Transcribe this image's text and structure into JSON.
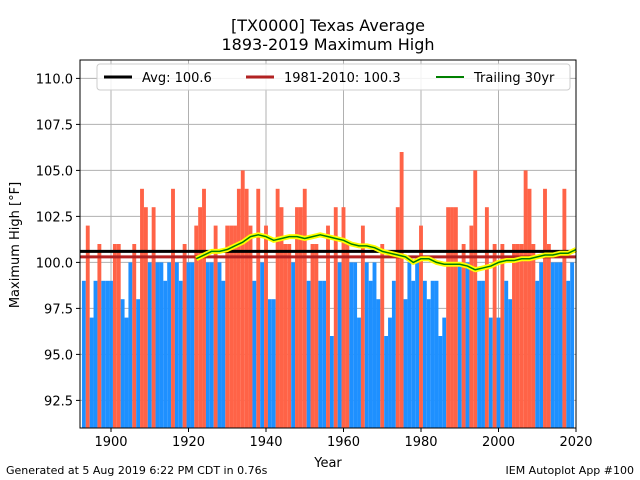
{
  "chart_data": {
    "type": "bar",
    "title": "[TX0000] Texas Average",
    "subtitle": "1893-2019 Maximum High",
    "xlabel": "Year",
    "ylabel": "Maximum High [°F]",
    "xlim": [
      1892,
      2020
    ],
    "ylim": [
      91.0,
      111.0
    ],
    "xticks": [
      1900,
      1920,
      1940,
      1960,
      1980,
      2000,
      2020
    ],
    "yticks": [
      92.5,
      95.0,
      97.5,
      100.0,
      102.5,
      105.0,
      107.5,
      110.0
    ],
    "grid": true,
    "legend_position": "top",
    "colors": {
      "above": "#ff6347",
      "below": "#1e90ff",
      "avg": "#000000",
      "climo": "#b22222",
      "trailing": "#008000",
      "trailing_halo": "#ffff00"
    },
    "start_year": 1893,
    "values": [
      99,
      102,
      97,
      99,
      101,
      99,
      99,
      99,
      101,
      101,
      98,
      97,
      100,
      101,
      98,
      104,
      103,
      100,
      103,
      100,
      100,
      99,
      100,
      104,
      100,
      99,
      101,
      100,
      100,
      102,
      103,
      104,
      100,
      100,
      102,
      100,
      99,
      102,
      102,
      102,
      104,
      105,
      104,
      102,
      99,
      104,
      100,
      102,
      98,
      98,
      104,
      103,
      101,
      101,
      100,
      103,
      103,
      104,
      99,
      101,
      101,
      99,
      99,
      102,
      96,
      103,
      100,
      103,
      101,
      100,
      100,
      97,
      102,
      100,
      99,
      100,
      98,
      101,
      96,
      97,
      99,
      103,
      106,
      98,
      100,
      99,
      100,
      102,
      99,
      98,
      99,
      99,
      96,
      97,
      103,
      103,
      103,
      100,
      101,
      100,
      102,
      105,
      99,
      99,
      103,
      97,
      101,
      97,
      101,
      99,
      98,
      101,
      101,
      101,
      105,
      104,
      101,
      99,
      100,
      104,
      101,
      100,
      100,
      100,
      104,
      99,
      100
    ],
    "avg_line": {
      "label": "Avg: 100.6",
      "value": 100.6
    },
    "climo_line": {
      "label": "1981-2010: 100.3",
      "value": 100.3
    },
    "trailing": {
      "label": "Trailing 30yr",
      "x": [
        1922,
        1924,
        1926,
        1928,
        1930,
        1932,
        1934,
        1936,
        1938,
        1940,
        1942,
        1944,
        1946,
        1948,
        1950,
        1952,
        1954,
        1956,
        1958,
        1960,
        1962,
        1964,
        1966,
        1968,
        1970,
        1972,
        1974,
        1976,
        1978,
        1980,
        1982,
        1984,
        1986,
        1988,
        1990,
        1992,
        1994,
        1996,
        1998,
        2000,
        2002,
        2004,
        2006,
        2008,
        2010,
        2012,
        2014,
        2016,
        2018,
        2020
      ],
      "y": [
        100.2,
        100.4,
        100.6,
        100.6,
        100.7,
        100.9,
        101.1,
        101.4,
        101.5,
        101.4,
        101.2,
        101.3,
        101.4,
        101.4,
        101.3,
        101.4,
        101.5,
        101.4,
        101.3,
        101.2,
        101.0,
        100.9,
        100.9,
        100.8,
        100.6,
        100.5,
        100.4,
        100.3,
        100.0,
        100.2,
        100.2,
        100.0,
        99.9,
        99.9,
        99.9,
        99.8,
        99.6,
        99.7,
        99.8,
        100.0,
        100.1,
        100.1,
        100.2,
        100.2,
        100.3,
        100.4,
        100.4,
        100.5,
        100.5,
        100.7
      ]
    }
  },
  "footer": {
    "left": "Generated at 5 Aug 2019 6:22 PM CDT in 0.76s",
    "right": "IEM Autoplot App #100"
  }
}
